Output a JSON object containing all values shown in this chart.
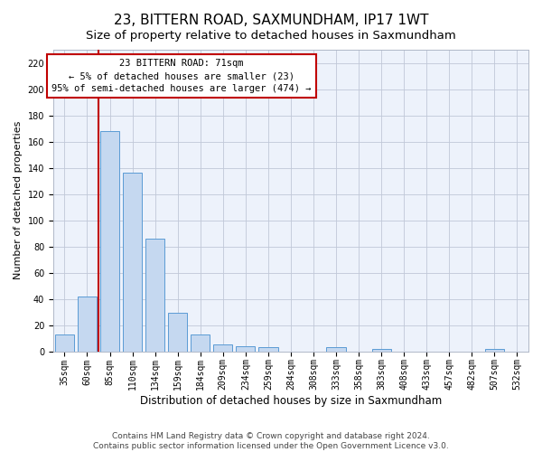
{
  "title": "23, BITTERN ROAD, SAXMUNDHAM, IP17 1WT",
  "subtitle": "Size of property relative to detached houses in Saxmundham",
  "xlabel": "Distribution of detached houses by size in Saxmundham",
  "ylabel": "Number of detached properties",
  "bar_labels": [
    "35sqm",
    "60sqm",
    "85sqm",
    "110sqm",
    "134sqm",
    "159sqm",
    "184sqm",
    "209sqm",
    "234sqm",
    "259sqm",
    "284sqm",
    "308sqm",
    "333sqm",
    "358sqm",
    "383sqm",
    "408sqm",
    "433sqm",
    "457sqm",
    "482sqm",
    "507sqm",
    "532sqm"
  ],
  "bar_values": [
    13,
    42,
    168,
    136,
    86,
    29,
    13,
    5,
    4,
    3,
    0,
    0,
    3,
    0,
    2,
    0,
    0,
    0,
    0,
    2,
    0
  ],
  "bar_color": "#c5d8f0",
  "bar_edge_color": "#5b9bd5",
  "vline_x": 1.5,
  "vline_color": "#c00000",
  "annotation_text": "23 BITTERN ROAD: 71sqm\n← 5% of detached houses are smaller (23)\n95% of semi-detached houses are larger (474) →",
  "annotation_box_color": "#ffffff",
  "annotation_box_edge_color": "#c00000",
  "ylim": [
    0,
    230
  ],
  "yticks": [
    0,
    20,
    40,
    60,
    80,
    100,
    120,
    140,
    160,
    180,
    200,
    220
  ],
  "footnote1": "Contains HM Land Registry data © Crown copyright and database right 2024.",
  "footnote2": "Contains public sector information licensed under the Open Government Licence v3.0.",
  "bg_color": "#edf2fb",
  "title_fontsize": 11,
  "subtitle_fontsize": 9.5,
  "xlabel_fontsize": 8.5,
  "ylabel_fontsize": 8,
  "tick_fontsize": 7,
  "annotation_fontsize": 7.5,
  "footnote_fontsize": 6.5
}
